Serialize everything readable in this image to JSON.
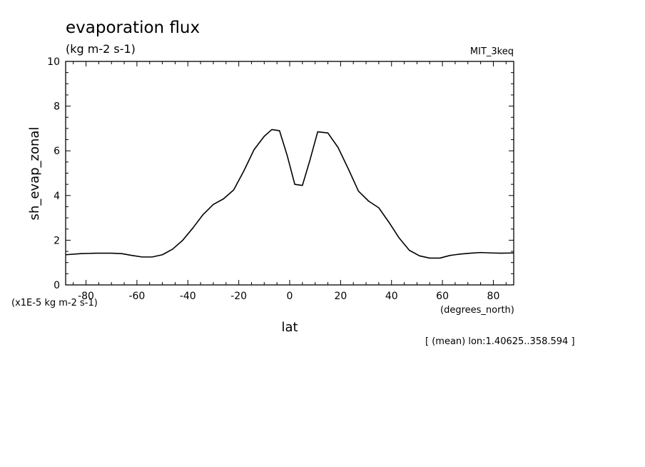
{
  "chart_data": {
    "type": "line",
    "title": "evaporation flux",
    "subtitle": "(kg m-2 s-1)",
    "model_label": "MIT_3keq",
    "xlabel": "lat",
    "xunits": "(degrees_north)",
    "ylabel": "sh_evap_zonal",
    "yscale_note": "(x1E-5 kg m-2 s-1)",
    "footnote": "[ (mean) lon:1.40625..358.594 ]",
    "xlim": [
      -88,
      88
    ],
    "ylim": [
      0,
      10
    ],
    "xticks": [
      -80,
      -60,
      -40,
      -20,
      0,
      20,
      40,
      60,
      80
    ],
    "xtick_labels": [
      "-80",
      "-60",
      "-40",
      "-20",
      "0",
      "20",
      "40",
      "60",
      "80"
    ],
    "yticks": [
      0,
      2,
      4,
      6,
      8,
      10
    ],
    "ytick_labels": [
      "0",
      "2",
      "4",
      "6",
      "8",
      "10"
    ],
    "grid": false,
    "line_color": "#000000",
    "series": [
      {
        "x": [
          -88,
          -82,
          -76,
          -70,
          -66,
          -62,
          -58,
          -54,
          -50,
          -46,
          -42,
          -38,
          -34,
          -30,
          -26,
          -22,
          -18,
          -14,
          -10,
          -7,
          -4,
          -1,
          2,
          5,
          8,
          11,
          15,
          19,
          23,
          27,
          31,
          35,
          39,
          43,
          47,
          51,
          55,
          59,
          63,
          67,
          71,
          75,
          79,
          83,
          88
        ],
        "y": [
          1.35,
          1.4,
          1.42,
          1.42,
          1.4,
          1.32,
          1.25,
          1.25,
          1.35,
          1.6,
          2.0,
          2.55,
          3.15,
          3.6,
          3.85,
          4.25,
          5.1,
          6.05,
          6.65,
          6.95,
          6.9,
          5.8,
          4.5,
          4.45,
          5.6,
          6.85,
          6.8,
          6.15,
          5.2,
          4.2,
          3.75,
          3.45,
          2.8,
          2.1,
          1.55,
          1.3,
          1.2,
          1.2,
          1.32,
          1.38,
          1.42,
          1.45,
          1.43,
          1.42,
          1.43
        ]
      }
    ]
  }
}
